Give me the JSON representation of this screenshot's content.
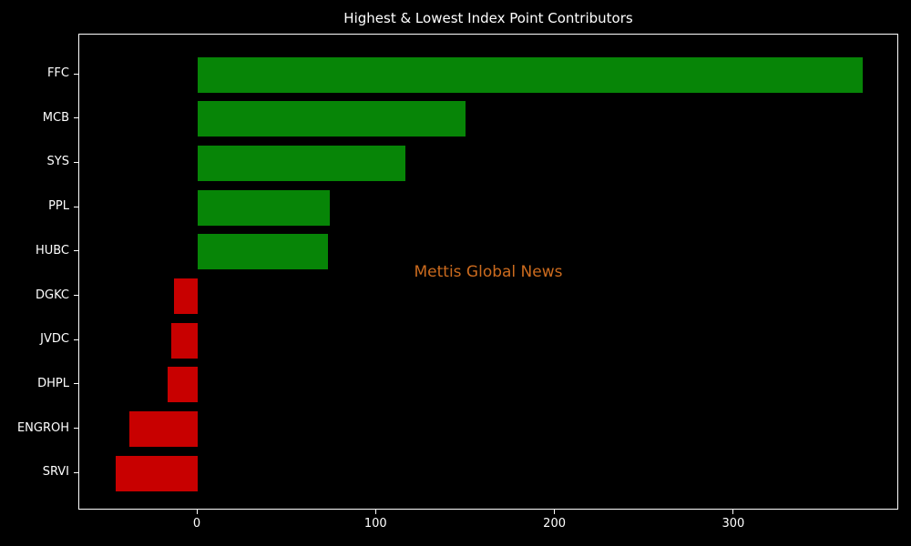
{
  "title": "Highest & Lowest Index Point Contributors",
  "watermark": "Mettis Global News",
  "colors": {
    "background": "#000000",
    "frame": "#ffffff",
    "text": "#ffffff",
    "positive_bar": "#078507",
    "negative_bar": "#c80000",
    "watermark": "#cc6b1e"
  },
  "chart_data": {
    "type": "bar",
    "orientation": "horizontal",
    "title": "Highest & Lowest Index Point Contributors",
    "categories": [
      "FFC",
      "MCB",
      "SYS",
      "PPL",
      "HUBC",
      "DGKC",
      "JVDC",
      "DHPL",
      "ENGROH",
      "SRVI"
    ],
    "values": [
      372,
      150,
      116,
      74,
      73,
      -13,
      -15,
      -17,
      -38,
      -46
    ],
    "xticks": [
      0,
      100,
      200,
      300
    ],
    "xlim": [
      -66,
      392
    ],
    "xlabel": "",
    "ylabel": "",
    "grid": false,
    "legend": null,
    "annotation": "Mettis Global News",
    "annotation_color": "#cc6b1e",
    "bar_colors_rule": "green for positive values, red for negative values"
  }
}
